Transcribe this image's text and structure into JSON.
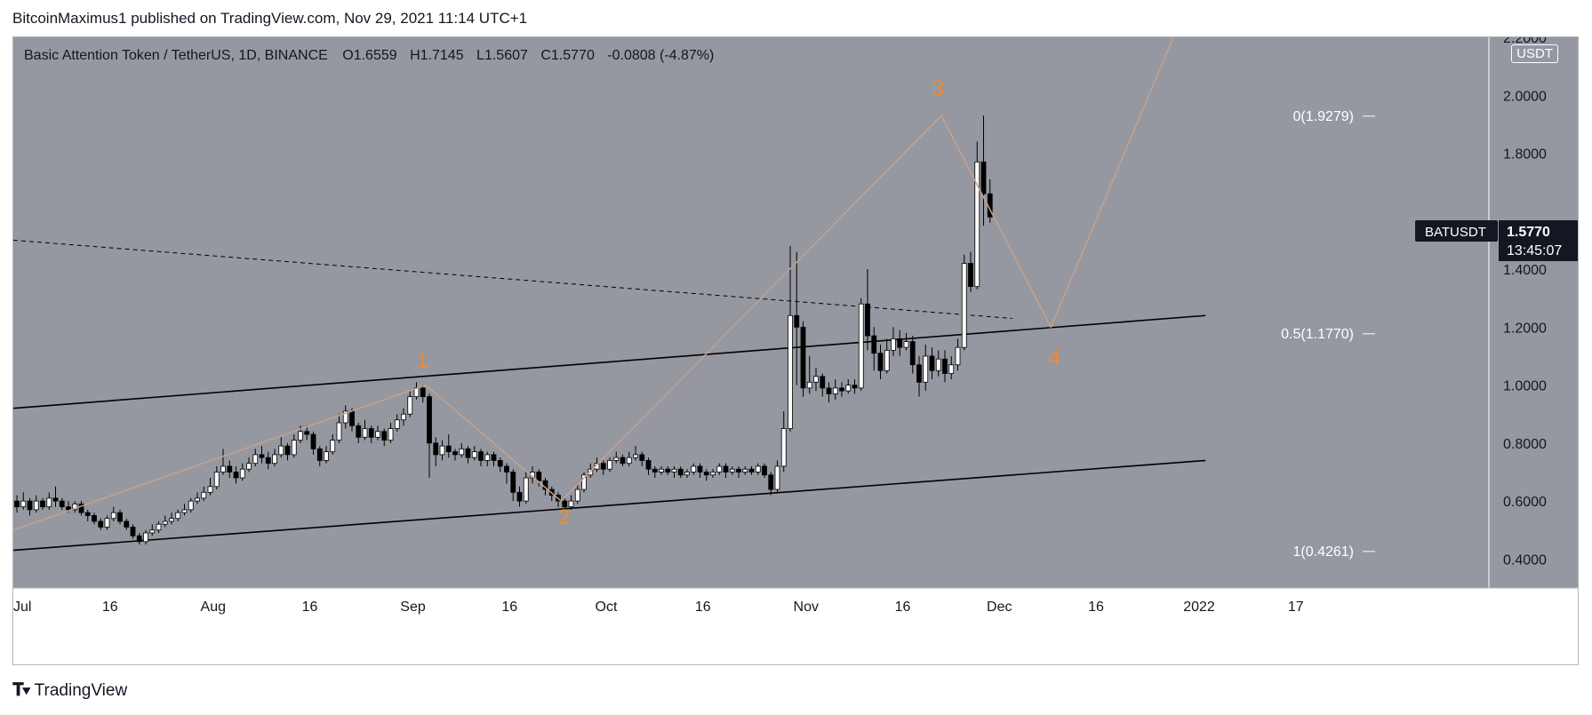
{
  "header": {
    "publisher": "BitcoinMaximus1 published on TradingView.com, Nov 29, 2021 11:14 UTC+1"
  },
  "legend": {
    "symbol": "Basic Attention Token / TetherUS, 1D, BINANCE",
    "open_label": "O",
    "open": "1.6559",
    "high_label": "H",
    "high": "1.7145",
    "low_label": "L",
    "low": "1.5607",
    "close_label": "C",
    "close": "1.5770",
    "change": "-0.0808 (-4.87%)"
  },
  "price_tag": {
    "ticker": "BATUSDT",
    "price": "1.5770",
    "countdown": "13:45:07"
  },
  "unit": "USDT",
  "footer": {
    "brand": "TradingView"
  },
  "colors": {
    "plot_bg": "#9598a1",
    "bullish": "#ffffff",
    "bearish": "#000000",
    "wave": "#c9a18b",
    "wave_label": "#f28b2c",
    "channel": "#000000",
    "tag_bg": "#131722"
  },
  "chart_data": {
    "type": "candlestick",
    "ylim": [
      0.3,
      2.2
    ],
    "y_ticks": [
      "0.4000",
      "0.6000",
      "0.8000",
      "1.0000",
      "1.2000",
      "1.4000",
      "1.8000",
      "2.0000",
      "2.2000"
    ],
    "x_ticks": [
      {
        "label": "Jul",
        "day": 0
      },
      {
        "label": "16",
        "day": 15
      },
      {
        "label": "Aug",
        "day": 31
      },
      {
        "label": "16",
        "day": 46
      },
      {
        "label": "Sep",
        "day": 62
      },
      {
        "label": "16",
        "day": 77
      },
      {
        "label": "Oct",
        "day": 92
      },
      {
        "label": "16",
        "day": 107
      },
      {
        "label": "Nov",
        "day": 123
      },
      {
        "label": "16",
        "day": 138
      },
      {
        "label": "Dec",
        "day": 153
      },
      {
        "label": "16",
        "day": 168
      },
      {
        "label": "2022",
        "day": 184
      },
      {
        "label": "17",
        "day": 199
      }
    ],
    "x_unit": "days since Jul 1, 2021",
    "candles": [
      [
        0.6,
        0.58,
        0.62,
        0.56
      ],
      [
        0.58,
        0.6,
        0.63,
        0.57
      ],
      [
        0.6,
        0.57,
        0.61,
        0.55
      ],
      [
        0.57,
        0.6,
        0.62,
        0.56
      ],
      [
        0.6,
        0.58,
        0.61,
        0.57
      ],
      [
        0.58,
        0.61,
        0.63,
        0.57
      ],
      [
        0.61,
        0.6,
        0.65,
        0.58
      ],
      [
        0.6,
        0.58,
        0.61,
        0.57
      ],
      [
        0.58,
        0.57,
        0.6,
        0.56
      ],
      [
        0.57,
        0.59,
        0.6,
        0.56
      ],
      [
        0.59,
        0.56,
        0.6,
        0.55
      ],
      [
        0.56,
        0.55,
        0.57,
        0.53
      ],
      [
        0.55,
        0.53,
        0.56,
        0.52
      ],
      [
        0.53,
        0.51,
        0.54,
        0.5
      ],
      [
        0.51,
        0.54,
        0.55,
        0.5
      ],
      [
        0.54,
        0.56,
        0.58,
        0.53
      ],
      [
        0.56,
        0.53,
        0.57,
        0.52
      ],
      [
        0.53,
        0.51,
        0.54,
        0.5
      ],
      [
        0.51,
        0.48,
        0.52,
        0.47
      ],
      [
        0.48,
        0.46,
        0.49,
        0.45
      ],
      [
        0.46,
        0.49,
        0.5,
        0.45
      ],
      [
        0.49,
        0.5,
        0.52,
        0.48
      ],
      [
        0.5,
        0.52,
        0.53,
        0.49
      ],
      [
        0.52,
        0.53,
        0.55,
        0.51
      ],
      [
        0.53,
        0.54,
        0.56,
        0.52
      ],
      [
        0.54,
        0.56,
        0.57,
        0.53
      ],
      [
        0.56,
        0.57,
        0.59,
        0.55
      ],
      [
        0.57,
        0.6,
        0.61,
        0.56
      ],
      [
        0.6,
        0.61,
        0.63,
        0.59
      ],
      [
        0.61,
        0.63,
        0.65,
        0.6
      ],
      [
        0.63,
        0.65,
        0.68,
        0.62
      ],
      [
        0.65,
        0.7,
        0.72,
        0.64
      ],
      [
        0.7,
        0.72,
        0.78,
        0.69
      ],
      [
        0.72,
        0.7,
        0.74,
        0.68
      ],
      [
        0.7,
        0.68,
        0.72,
        0.66
      ],
      [
        0.68,
        0.71,
        0.73,
        0.67
      ],
      [
        0.71,
        0.73,
        0.75,
        0.7
      ],
      [
        0.73,
        0.76,
        0.78,
        0.72
      ],
      [
        0.76,
        0.75,
        0.79,
        0.73
      ],
      [
        0.75,
        0.73,
        0.77,
        0.71
      ],
      [
        0.73,
        0.76,
        0.78,
        0.72
      ],
      [
        0.76,
        0.79,
        0.82,
        0.75
      ],
      [
        0.79,
        0.76,
        0.8,
        0.74
      ],
      [
        0.76,
        0.81,
        0.83,
        0.75
      ],
      [
        0.81,
        0.84,
        0.86,
        0.8
      ],
      [
        0.84,
        0.83,
        0.86,
        0.81
      ],
      [
        0.83,
        0.78,
        0.84,
        0.76
      ],
      [
        0.78,
        0.74,
        0.79,
        0.72
      ],
      [
        0.74,
        0.77,
        0.79,
        0.73
      ],
      [
        0.77,
        0.81,
        0.83,
        0.76
      ],
      [
        0.81,
        0.87,
        0.9,
        0.8
      ],
      [
        0.87,
        0.91,
        0.93,
        0.85
      ],
      [
        0.91,
        0.86,
        0.92,
        0.84
      ],
      [
        0.86,
        0.82,
        0.87,
        0.8
      ],
      [
        0.82,
        0.85,
        0.88,
        0.81
      ],
      [
        0.85,
        0.82,
        0.86,
        0.8
      ],
      [
        0.82,
        0.84,
        0.86,
        0.81
      ],
      [
        0.84,
        0.81,
        0.85,
        0.79
      ],
      [
        0.81,
        0.85,
        0.87,
        0.8
      ],
      [
        0.85,
        0.88,
        0.9,
        0.84
      ],
      [
        0.88,
        0.9,
        0.92,
        0.86
      ],
      [
        0.9,
        0.96,
        0.98,
        0.89
      ],
      [
        0.96,
        0.99,
        1.01,
        0.95
      ],
      [
        0.99,
        0.96,
        1.0,
        0.94
      ],
      [
        0.96,
        0.8,
        0.97,
        0.68
      ],
      [
        0.8,
        0.76,
        0.82,
        0.72
      ],
      [
        0.76,
        0.79,
        0.81,
        0.74
      ],
      [
        0.79,
        0.77,
        0.83,
        0.75
      ],
      [
        0.77,
        0.76,
        0.78,
        0.74
      ],
      [
        0.76,
        0.78,
        0.8,
        0.75
      ],
      [
        0.78,
        0.75,
        0.79,
        0.73
      ],
      [
        0.75,
        0.77,
        0.79,
        0.74
      ],
      [
        0.77,
        0.74,
        0.78,
        0.72
      ],
      [
        0.74,
        0.76,
        0.77,
        0.72
      ],
      [
        0.76,
        0.74,
        0.77,
        0.72
      ],
      [
        0.74,
        0.72,
        0.75,
        0.7
      ],
      [
        0.72,
        0.7,
        0.73,
        0.66
      ],
      [
        0.7,
        0.63,
        0.71,
        0.6
      ],
      [
        0.63,
        0.6,
        0.65,
        0.58
      ],
      [
        0.6,
        0.68,
        0.7,
        0.59
      ],
      [
        0.68,
        0.7,
        0.72,
        0.66
      ],
      [
        0.7,
        0.67,
        0.71,
        0.65
      ],
      [
        0.67,
        0.64,
        0.68,
        0.62
      ],
      [
        0.64,
        0.62,
        0.65,
        0.6
      ],
      [
        0.62,
        0.6,
        0.63,
        0.58
      ],
      [
        0.6,
        0.58,
        0.61,
        0.57
      ],
      [
        0.58,
        0.6,
        0.62,
        0.57
      ],
      [
        0.6,
        0.64,
        0.66,
        0.59
      ],
      [
        0.64,
        0.69,
        0.7,
        0.63
      ],
      [
        0.69,
        0.71,
        0.73,
        0.68
      ],
      [
        0.71,
        0.73,
        0.75,
        0.7
      ],
      [
        0.73,
        0.71,
        0.74,
        0.69
      ],
      [
        0.71,
        0.74,
        0.75,
        0.7
      ],
      [
        0.74,
        0.75,
        0.77,
        0.73
      ],
      [
        0.75,
        0.73,
        0.76,
        0.72
      ],
      [
        0.73,
        0.75,
        0.77,
        0.72
      ],
      [
        0.75,
        0.76,
        0.79,
        0.74
      ],
      [
        0.76,
        0.74,
        0.77,
        0.72
      ],
      [
        0.74,
        0.71,
        0.75,
        0.69
      ],
      [
        0.71,
        0.7,
        0.72,
        0.68
      ],
      [
        0.7,
        0.71,
        0.72,
        0.69
      ],
      [
        0.71,
        0.7,
        0.72,
        0.69
      ],
      [
        0.7,
        0.71,
        0.72,
        0.68
      ],
      [
        0.71,
        0.69,
        0.72,
        0.68
      ],
      [
        0.69,
        0.7,
        0.71,
        0.68
      ],
      [
        0.7,
        0.72,
        0.73,
        0.69
      ],
      [
        0.72,
        0.7,
        0.73,
        0.68
      ],
      [
        0.7,
        0.69,
        0.71,
        0.67
      ],
      [
        0.69,
        0.7,
        0.71,
        0.68
      ],
      [
        0.7,
        0.72,
        0.73,
        0.69
      ],
      [
        0.72,
        0.7,
        0.73,
        0.68
      ],
      [
        0.7,
        0.71,
        0.72,
        0.69
      ],
      [
        0.71,
        0.7,
        0.72,
        0.68
      ],
      [
        0.7,
        0.71,
        0.72,
        0.69
      ],
      [
        0.71,
        0.7,
        0.72,
        0.69
      ],
      [
        0.7,
        0.72,
        0.73,
        0.69
      ],
      [
        0.72,
        0.69,
        0.73,
        0.68
      ],
      [
        0.69,
        0.64,
        0.7,
        0.62
      ],
      [
        0.64,
        0.72,
        0.74,
        0.63
      ],
      [
        0.72,
        0.85,
        0.91,
        0.7
      ],
      [
        0.85,
        1.24,
        1.48,
        0.84
      ],
      [
        1.24,
        1.2,
        1.46,
        1.0
      ],
      [
        1.2,
        0.99,
        1.22,
        0.96
      ],
      [
        0.99,
        1.01,
        1.1,
        0.97
      ],
      [
        1.01,
        1.03,
        1.06,
        0.98
      ],
      [
        1.03,
        0.99,
        1.04,
        0.96
      ],
      [
        0.99,
        0.97,
        1.01,
        0.94
      ],
      [
        0.97,
        0.99,
        1.02,
        0.95
      ],
      [
        0.99,
        0.98,
        1.01,
        0.96
      ],
      [
        0.98,
        1.0,
        1.02,
        0.97
      ],
      [
        1.0,
        0.99,
        1.02,
        0.97
      ],
      [
        0.99,
        1.28,
        1.3,
        0.98
      ],
      [
        1.28,
        1.17,
        1.4,
        1.12
      ],
      [
        1.17,
        1.11,
        1.2,
        1.05
      ],
      [
        1.11,
        1.05,
        1.14,
        1.02
      ],
      [
        1.05,
        1.12,
        1.16,
        1.04
      ],
      [
        1.12,
        1.16,
        1.2,
        1.1
      ],
      [
        1.16,
        1.13,
        1.19,
        1.1
      ],
      [
        1.13,
        1.15,
        1.18,
        1.12
      ],
      [
        1.15,
        1.07,
        1.17,
        1.04
      ],
      [
        1.07,
        1.01,
        1.1,
        0.96
      ],
      [
        1.01,
        1.1,
        1.14,
        0.98
      ],
      [
        1.1,
        1.05,
        1.13,
        1.02
      ],
      [
        1.05,
        1.09,
        1.12,
        1.03
      ],
      [
        1.09,
        1.04,
        1.12,
        1.01
      ],
      [
        1.04,
        1.07,
        1.1,
        1.02
      ],
      [
        1.07,
        1.13,
        1.16,
        1.05
      ],
      [
        1.13,
        1.42,
        1.45,
        1.12
      ],
      [
        1.42,
        1.34,
        1.46,
        1.32
      ],
      [
        1.34,
        1.77,
        1.84,
        1.33
      ],
      [
        1.77,
        1.66,
        1.93,
        1.55
      ],
      [
        1.66,
        1.58,
        1.71,
        1.56
      ]
    ],
    "channel_upper": {
      "start": [
        0,
        0.92
      ],
      "end": [
        185,
        1.24
      ]
    },
    "channel_lower": {
      "start": [
        0,
        0.43
      ],
      "end": [
        185,
        0.74
      ]
    },
    "dashed_resistance": {
      "start": [
        0,
        1.5
      ],
      "end": [
        155,
        1.23
      ]
    },
    "wave_path": [
      [
        0,
        0.5
      ],
      [
        64,
        1.0
      ],
      [
        85,
        0.6
      ],
      [
        144,
        1.93
      ],
      [
        161,
        1.2
      ],
      [
        180,
        2.2
      ]
    ],
    "wave_labels": [
      {
        "text": "1",
        "day": 63.5,
        "price": 1.06
      },
      {
        "text": "2",
        "day": 85.5,
        "price": 0.52
      },
      {
        "text": "3",
        "day": 143.5,
        "price": 2.0
      },
      {
        "text": "4",
        "day": 161.5,
        "price": 1.07
      }
    ],
    "fib_levels": [
      {
        "label": "0(1.9279)",
        "price": 1.9279
      },
      {
        "label": "0.5(1.1770)",
        "price": 1.177
      },
      {
        "label": "1(0.4261)",
        "price": 0.4261
      }
    ]
  }
}
